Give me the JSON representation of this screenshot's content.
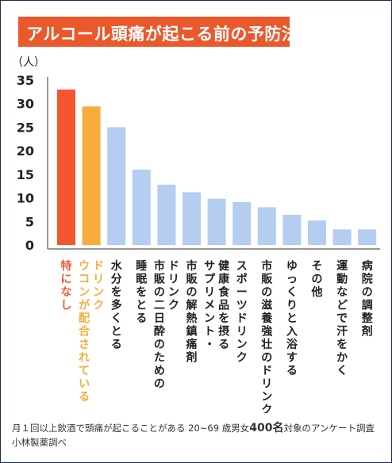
{
  "title": "アルコール頭痛が起こる前の予防法",
  "footnote": {
    "line1_prefix": "月１回以上飲酒で頭痛が起こることがある 20~69 歳男女",
    "line1_number": "400名",
    "line1_suffix": "対象のアンケート調査",
    "line2": "小林製薬調べ"
  },
  "chart_data": {
    "type": "bar",
    "ylabel": "（人）",
    "ylim": [
      0,
      35
    ],
    "yticks": [
      0,
      5,
      10,
      15,
      20,
      25,
      30,
      35
    ],
    "grid": false,
    "categories": [
      "特になし",
      "ウコンが配合されているドリンク",
      "水分を多くとる",
      "睡眠をとる",
      "市販の二日酔のためのドリンク",
      "市販の解熱鎮痛剤",
      "サプリメント・健康食品を摂る",
      "スポーツドリンク",
      "市販の滋養強壮のドリンク",
      "ゆっくりと入浴する",
      "その他",
      "運動などで汗をかく",
      "病院の調整剤"
    ],
    "label_lines": [
      [
        "特になし"
      ],
      [
        "ウコンが配合されている",
        "ドリンク"
      ],
      [
        "水分を多くとる"
      ],
      [
        "睡眠をとる"
      ],
      [
        "市販の二日酔のための",
        "ドリンク"
      ],
      [
        "市販の解熱鎮痛剤"
      ],
      [
        "サプリメント・",
        "健康食品を摂る"
      ],
      [
        "スポーツドリンク"
      ],
      [
        "市販の滋養強壮のドリンク"
      ],
      [
        "ゆっくりと入浴する"
      ],
      [
        "その他"
      ],
      [
        "運動などで汗をかく"
      ],
      [
        "病院の調整剤"
      ]
    ],
    "values": [
      33,
      29.4,
      25,
      16,
      12.8,
      11.2,
      9.8,
      9.1,
      8,
      6.4,
      5.2,
      3.3,
      3.3
    ],
    "colors": [
      "#f4572f",
      "#f6ad3d",
      "#b4cdf0",
      "#b4cdf0",
      "#b4cdf0",
      "#b4cdf0",
      "#b4cdf0",
      "#b4cdf0",
      "#b4cdf0",
      "#b4cdf0",
      "#b4cdf0",
      "#b4cdf0",
      "#b4cdf0"
    ],
    "label_colors": [
      "#f4572f",
      "#f6ad3d",
      "#222222",
      "#222222",
      "#222222",
      "#222222",
      "#222222",
      "#222222",
      "#222222",
      "#222222",
      "#222222",
      "#222222",
      "#222222"
    ]
  }
}
